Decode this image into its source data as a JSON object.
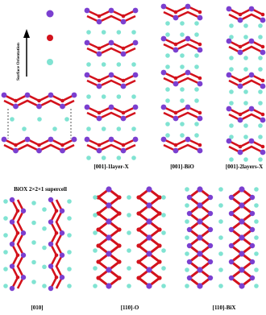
{
  "legend": {
    "label": "Surface Orientation"
  },
  "panels": [
    {
      "label": "BiOX 2×2×1 supercell"
    },
    {
      "label": "[001]-1layer-X"
    },
    {
      "label": "[001]-BiO"
    },
    {
      "label": "[001]-2layers-X"
    },
    {
      "label": "[010]"
    },
    {
      "label": "[110]-O"
    },
    {
      "label": "[110]-BiX"
    }
  ]
}
